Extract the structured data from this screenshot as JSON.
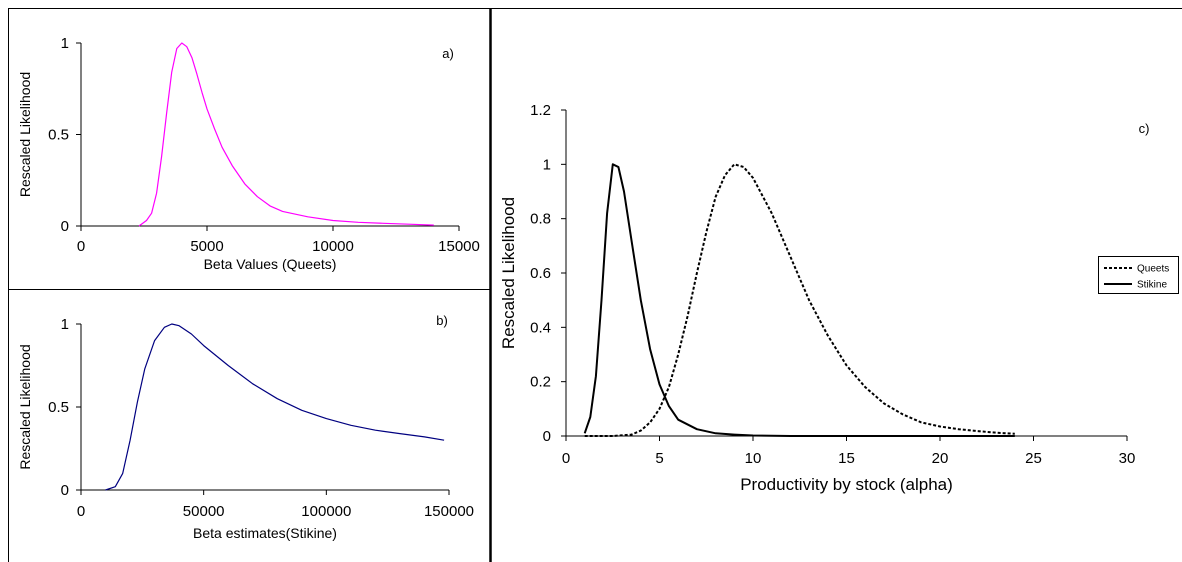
{
  "chart_data": [
    {
      "id": "a",
      "type": "line",
      "panel_label": "a)",
      "xlabel": "Beta Values (Queets)",
      "ylabel": "Rescaled Likelihood",
      "xlim": [
        0,
        15000
      ],
      "ylim": [
        0,
        1
      ],
      "xticks": [
        0,
        5000,
        10000,
        15000
      ],
      "yticks": [
        0,
        0.5,
        1
      ],
      "grid": false,
      "series": [
        {
          "color": "#ff00ff",
          "dash": "solid",
          "x": [
            2300,
            2600,
            2800,
            3000,
            3200,
            3400,
            3600,
            3800,
            4000,
            4200,
            4400,
            4600,
            4800,
            5000,
            5300,
            5600,
            6000,
            6500,
            7000,
            7500,
            8000,
            9000,
            10000,
            11000,
            12000,
            13000,
            14000
          ],
          "y": [
            0,
            0.03,
            0.07,
            0.18,
            0.38,
            0.62,
            0.84,
            0.97,
            1.0,
            0.98,
            0.92,
            0.83,
            0.73,
            0.64,
            0.53,
            0.43,
            0.33,
            0.23,
            0.16,
            0.11,
            0.08,
            0.05,
            0.03,
            0.02,
            0.015,
            0.01,
            0.005
          ]
        }
      ]
    },
    {
      "id": "b",
      "type": "line",
      "panel_label": "b)",
      "xlabel": "Beta estimates(Stikine)",
      "ylabel": "Rescaled Likelihood",
      "xlim": [
        0,
        150000
      ],
      "ylim": [
        0,
        1
      ],
      "xticks": [
        0,
        50000,
        100000,
        150000
      ],
      "yticks": [
        0,
        0.5,
        1
      ],
      "grid": false,
      "series": [
        {
          "color": "#000080",
          "dash": "solid",
          "x": [
            10000,
            14000,
            17000,
            20000,
            23000,
            26000,
            30000,
            34000,
            37000,
            40000,
            45000,
            50000,
            60000,
            70000,
            80000,
            90000,
            100000,
            110000,
            120000,
            130000,
            140000,
            148000
          ],
          "y": [
            0,
            0.02,
            0.1,
            0.3,
            0.53,
            0.73,
            0.9,
            0.98,
            1.0,
            0.99,
            0.94,
            0.87,
            0.75,
            0.64,
            0.55,
            0.48,
            0.43,
            0.39,
            0.36,
            0.34,
            0.32,
            0.3
          ]
        }
      ]
    },
    {
      "id": "c",
      "type": "line",
      "panel_label": "c)",
      "xlabel": "Productivity by stock (alpha)",
      "ylabel": "Rescaled Likelihood",
      "xlim": [
        0,
        30
      ],
      "ylim": [
        0,
        1.2
      ],
      "xticks": [
        0,
        5,
        10,
        15,
        20,
        25,
        30
      ],
      "yticks": [
        0,
        0.2,
        0.4,
        0.6,
        0.8,
        1,
        1.2
      ],
      "ytick_labels": [
        "0",
        "0.2",
        "0.4",
        "0.6",
        "0.8",
        "1",
        "1.2"
      ],
      "grid": false,
      "legend_position": "right",
      "series": [
        {
          "name": "Queets",
          "color": "#000000",
          "dash": "dashed",
          "x": [
            1,
            2.5,
            3.5,
            4,
            4.5,
            5,
            5.5,
            6,
            6.5,
            7,
            7.5,
            8,
            8.5,
            9,
            9.5,
            10,
            11,
            12,
            13,
            14,
            15,
            16,
            17,
            18,
            19,
            20,
            21,
            22,
            23,
            24
          ],
          "y": [
            0,
            0,
            0.005,
            0.02,
            0.05,
            0.1,
            0.18,
            0.3,
            0.44,
            0.6,
            0.75,
            0.88,
            0.96,
            1.0,
            0.99,
            0.95,
            0.82,
            0.66,
            0.5,
            0.37,
            0.26,
            0.18,
            0.12,
            0.08,
            0.05,
            0.035,
            0.025,
            0.018,
            0.012,
            0.008
          ]
        },
        {
          "name": "Stikine",
          "color": "#000000",
          "dash": "solid",
          "x": [
            1,
            1.3,
            1.6,
            1.9,
            2.2,
            2.5,
            2.8,
            3.1,
            3.5,
            4,
            4.5,
            5,
            5.5,
            6,
            7,
            8,
            9,
            10,
            12,
            15,
            20,
            24
          ],
          "y": [
            0.01,
            0.07,
            0.22,
            0.5,
            0.82,
            1.0,
            0.99,
            0.9,
            0.72,
            0.5,
            0.32,
            0.19,
            0.11,
            0.06,
            0.025,
            0.01,
            0.005,
            0.002,
            0,
            0,
            0,
            0
          ]
        }
      ]
    }
  ]
}
